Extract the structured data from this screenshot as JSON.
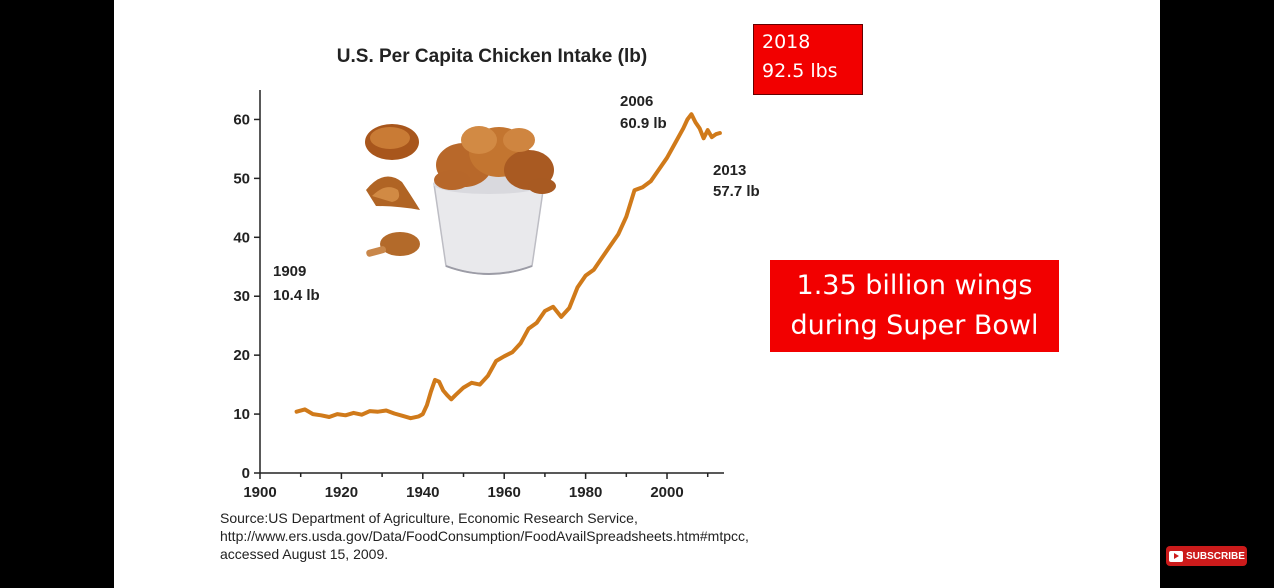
{
  "chart_data": {
    "type": "line",
    "title": "U.S. Per Capita Chicken Intake (lb)",
    "xlabel": "",
    "ylabel": "",
    "xlim": [
      1900,
      2013
    ],
    "ylim": [
      0,
      65
    ],
    "x_ticks": [
      1900,
      1920,
      1940,
      1960,
      1980,
      2000
    ],
    "y_ticks": [
      0,
      10,
      20,
      30,
      40,
      50,
      60
    ],
    "grid": false,
    "legend": "none",
    "series": [
      {
        "color": "#d07a1a",
        "x": [
          1909,
          1911,
          1913,
          1915,
          1917,
          1919,
          1921,
          1923,
          1925,
          1927,
          1929,
          1931,
          1933,
          1935,
          1937,
          1939,
          1940,
          1941,
          1942,
          1943,
          1944,
          1945,
          1946,
          1947,
          1948,
          1950,
          1952,
          1954,
          1956,
          1958,
          1960,
          1962,
          1964,
          1966,
          1968,
          1970,
          1972,
          1974,
          1976,
          1978,
          1980,
          1982,
          1984,
          1986,
          1988,
          1990,
          1992,
          1994,
          1996,
          1998,
          2000,
          2002,
          2004,
          2005,
          2006,
          2007,
          2008,
          2009,
          2010,
          2011,
          2012,
          2013
        ],
        "y": [
          10.4,
          10.8,
          10.0,
          9.8,
          9.5,
          10.0,
          9.8,
          10.2,
          9.9,
          10.5,
          10.4,
          10.6,
          10.1,
          9.7,
          9.3,
          9.6,
          10.0,
          11.5,
          13.8,
          15.8,
          15.5,
          14.0,
          13.2,
          12.5,
          13.2,
          14.5,
          15.3,
          15.0,
          16.5,
          19.0,
          19.8,
          20.5,
          22.0,
          24.5,
          25.5,
          27.5,
          28.2,
          26.5,
          28.0,
          31.5,
          33.5,
          34.5,
          36.5,
          38.5,
          40.5,
          43.5,
          48.0,
          48.5,
          49.5,
          51.5,
          53.5,
          56.0,
          58.5,
          60.0,
          60.9,
          59.5,
          58.5,
          56.8,
          58.2,
          57.0,
          57.5,
          57.7
        ]
      }
    ],
    "annotations": [
      {
        "label": "1909",
        "value": "10.4 lb"
      },
      {
        "label": "2006",
        "value": "60.9 lb"
      },
      {
        "label": "2013",
        "value": "57.7 lb"
      }
    ]
  },
  "source_lines": [
    "Source:US  Department of Agriculture, Economic Research Service,",
    "http://www.ers.usda.gov/Data/FoodConsumption/FoodAvailSpreadsheets.htm#mtpcc,",
    "accessed August 15, 2009."
  ],
  "callout_2018": {
    "year": "2018",
    "value": "92.5 lbs"
  },
  "callout_wings": {
    "line1": "1.35 billion wings",
    "line2": "during Super Bowl"
  },
  "subscribe_label": "SUBSCRIBE",
  "colors": {
    "callout_bg": "#f20000",
    "line": "#d07a1a",
    "subscribe_bg": "#cc1b1b"
  }
}
